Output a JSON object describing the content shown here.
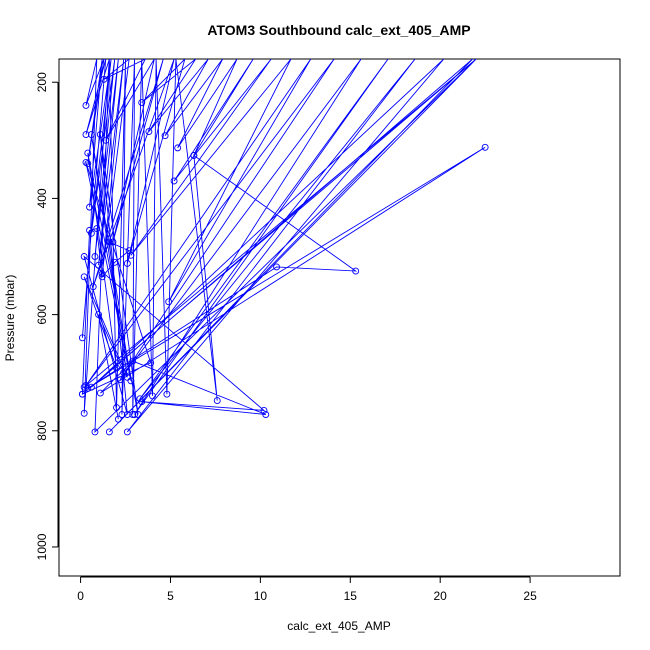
{
  "chart_data": {
    "type": "line",
    "title": "ATOM3 Southbound calc_ext_405_AMP",
    "xlabel": "calc_ext_405_AMP",
    "ylabel": "Pressure (mbar)",
    "xlim": [
      -1.2,
      30
    ],
    "ylim": [
      160,
      1050
    ],
    "y_reversed": true,
    "x_ticks": [
      0,
      5,
      10,
      15,
      20,
      25
    ],
    "y_ticks": [
      200,
      400,
      600,
      800,
      1000
    ],
    "grid": false,
    "series_color": "#0000ff",
    "marker": "open-circle",
    "series": [
      {
        "values": [
          [
            0.1,
            640
          ],
          [
            1.4,
            160
          ],
          [
            0.3,
            290
          ],
          [
            1.6,
            160
          ],
          [
            0.2,
            770
          ],
          [
            0.9,
            160
          ],
          [
            0.3,
            240
          ],
          [
            1.3,
            160
          ],
          [
            0.4,
            340
          ],
          [
            1.2,
            160
          ],
          [
            0.5,
            415
          ],
          [
            1.7,
            160
          ],
          [
            0.6,
            460
          ],
          [
            1.9,
            160
          ],
          [
            0.8,
            500
          ],
          [
            2.1,
            160
          ],
          [
            1.0,
            515
          ],
          [
            2.4,
            160
          ],
          [
            1.2,
            530
          ],
          [
            2.7,
            160
          ],
          [
            1.3,
            195
          ],
          [
            3.6,
            160
          ],
          [
            1.4,
            300
          ],
          [
            4.1,
            160
          ],
          [
            1.8,
            475
          ],
          [
            4.6,
            160
          ],
          [
            0.7,
            552
          ],
          [
            5.2,
            160
          ],
          [
            2.6,
            512
          ],
          [
            5.8,
            160
          ],
          [
            3.4,
            235
          ],
          [
            6.4,
            160
          ],
          [
            3.8,
            285
          ],
          [
            7.1,
            160
          ],
          [
            4.7,
            292
          ],
          [
            7.9,
            160
          ],
          [
            5.4,
            313
          ],
          [
            8.7,
            160
          ],
          [
            6.3,
            326
          ],
          [
            9.6,
            160
          ],
          [
            5.2,
            370
          ],
          [
            10.6,
            160
          ],
          [
            2.8,
            498
          ],
          [
            11.7,
            160
          ],
          [
            4.9,
            578
          ],
          [
            12.8,
            160
          ],
          [
            0.3,
            722
          ],
          [
            14.1,
            160
          ],
          [
            2.2,
            712
          ],
          [
            15.6,
            160
          ],
          [
            3.0,
            772
          ],
          [
            17.1,
            160
          ],
          [
            3.3,
            745
          ],
          [
            18.6,
            160
          ],
          [
            2.6,
            802
          ],
          [
            20.2,
            160
          ],
          [
            0.6,
            725
          ],
          [
            21.8,
            160
          ],
          [
            1.6,
            802
          ],
          [
            22.0,
            160
          ],
          [
            0.2,
            725
          ],
          [
            22.0,
            160
          ],
          [
            0.1,
            737
          ],
          [
            22.0,
            160
          ],
          [
            0.8,
            802
          ],
          [
            1.6,
            160
          ],
          [
            2.0,
            760
          ],
          [
            2.5,
            160
          ],
          [
            2.3,
            772
          ],
          [
            3.0,
            160
          ],
          [
            2.9,
            772
          ],
          [
            3.4,
            160
          ],
          [
            4.0,
            740
          ],
          [
            4.2,
            160
          ],
          [
            4.8,
            737
          ],
          [
            5.3,
            160
          ],
          [
            7.6,
            748
          ],
          [
            6.3,
            326
          ],
          [
            15.3,
            525
          ],
          [
            10.9,
            518
          ],
          [
            0.4,
            727
          ],
          [
            22.5,
            312
          ],
          [
            1.1,
            735
          ],
          [
            2.9,
            680
          ],
          [
            10.3,
            772
          ],
          [
            3.4,
            750
          ],
          [
            10.2,
            765
          ],
          [
            0.2,
            500
          ],
          [
            2.6,
            772
          ],
          [
            1.1,
            290
          ],
          [
            3.2,
            772
          ],
          [
            0.4,
            322
          ],
          [
            2.0,
            692
          ],
          [
            0.2,
            535
          ],
          [
            2.6,
            708
          ],
          [
            0.6,
            290
          ],
          [
            2.8,
            714
          ],
          [
            0.3,
            338
          ],
          [
            3.9,
            683
          ],
          [
            0.1,
            737
          ],
          [
            0.5,
            455
          ],
          [
            0.9,
            452
          ],
          [
            1.2,
            535
          ],
          [
            1.9,
            510
          ],
          [
            2.7,
            490
          ],
          [
            1.6,
            475
          ],
          [
            2.4,
            700
          ],
          [
            1.0,
            600
          ],
          [
            2.1,
            780
          ]
        ]
      }
    ]
  }
}
